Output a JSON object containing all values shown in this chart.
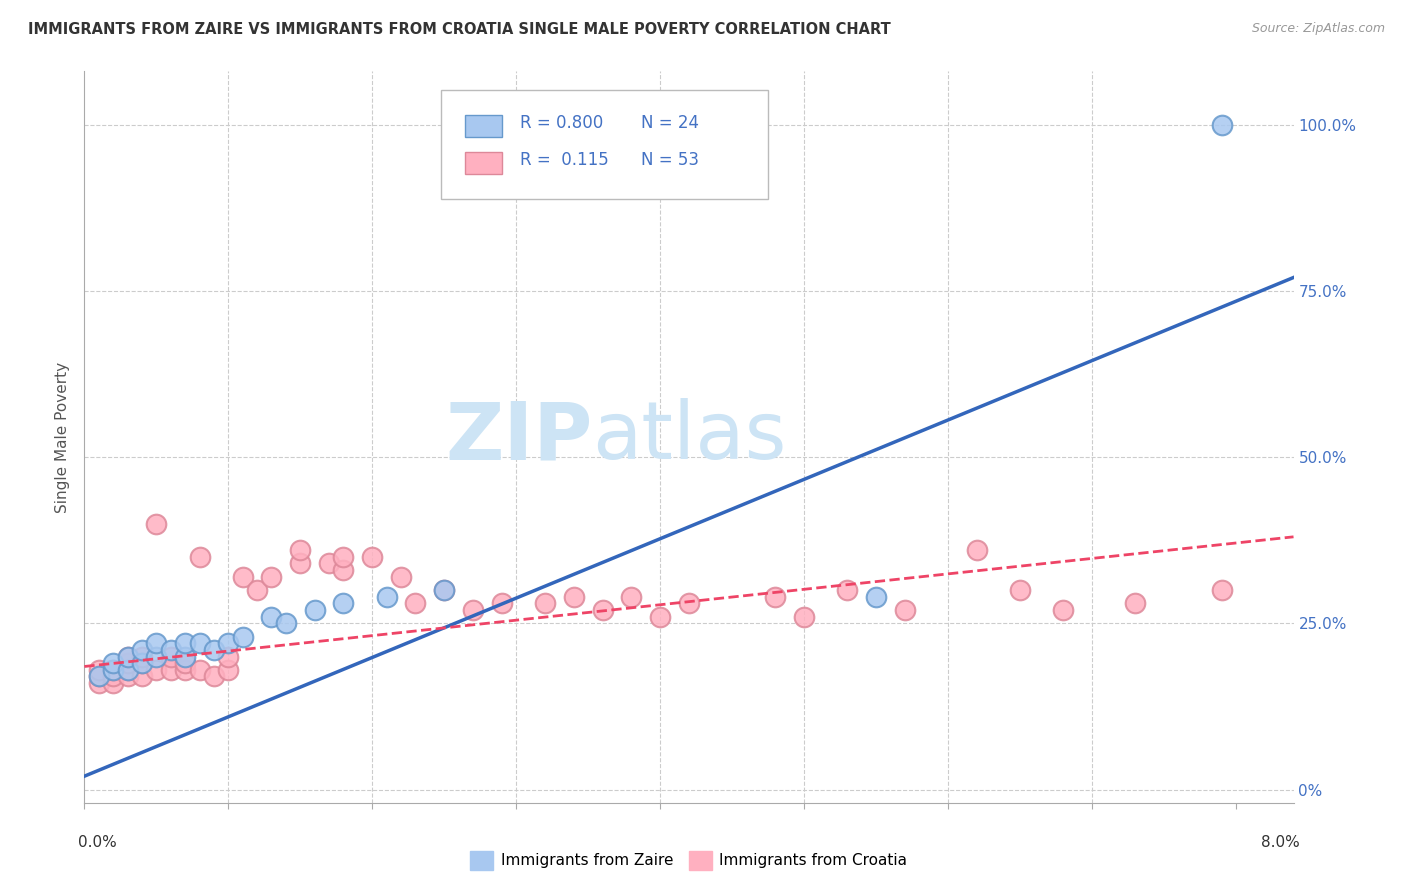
{
  "title": "IMMIGRANTS FROM ZAIRE VS IMMIGRANTS FROM CROATIA SINGLE MALE POVERTY CORRELATION CHART",
  "source": "Source: ZipAtlas.com",
  "ylabel": "Single Male Poverty",
  "yticks_labels": [
    "0%",
    "25.0%",
    "50.0%",
    "75.0%",
    "100.0%"
  ],
  "ytick_vals": [
    0.0,
    0.25,
    0.5,
    0.75,
    1.0
  ],
  "xlim": [
    0.0,
    0.084
  ],
  "ylim": [
    -0.02,
    1.08
  ],
  "zaire_color": "#a8c8f0",
  "zaire_edge_color": "#6699cc",
  "croatia_color": "#ffb0c0",
  "croatia_edge_color": "#dd8899",
  "zaire_line_color": "#3366bb",
  "croatia_line_color": "#ee4466",
  "watermark_color": "#cde4f5",
  "bg_color": "#ffffff",
  "grid_color": "#cccccc",
  "tick_label_color": "#4472c4",
  "zaire_x": [
    0.001,
    0.002,
    0.002,
    0.003,
    0.003,
    0.004,
    0.004,
    0.005,
    0.005,
    0.006,
    0.007,
    0.007,
    0.008,
    0.009,
    0.01,
    0.011,
    0.013,
    0.014,
    0.016,
    0.018,
    0.021,
    0.025,
    0.055,
    0.079
  ],
  "zaire_y": [
    0.17,
    0.18,
    0.19,
    0.18,
    0.2,
    0.19,
    0.21,
    0.2,
    0.22,
    0.21,
    0.2,
    0.22,
    0.22,
    0.21,
    0.22,
    0.23,
    0.26,
    0.25,
    0.27,
    0.28,
    0.29,
    0.3,
    0.29,
    1.0
  ],
  "croatia_x": [
    0.001,
    0.001,
    0.001,
    0.002,
    0.002,
    0.002,
    0.003,
    0.003,
    0.003,
    0.003,
    0.004,
    0.004,
    0.004,
    0.005,
    0.005,
    0.006,
    0.006,
    0.007,
    0.007,
    0.008,
    0.008,
    0.009,
    0.01,
    0.01,
    0.011,
    0.012,
    0.013,
    0.015,
    0.015,
    0.017,
    0.018,
    0.018,
    0.02,
    0.022,
    0.023,
    0.025,
    0.027,
    0.029,
    0.032,
    0.034,
    0.036,
    0.038,
    0.04,
    0.042,
    0.048,
    0.05,
    0.053,
    0.057,
    0.062,
    0.065,
    0.068,
    0.073,
    0.079
  ],
  "croatia_y": [
    0.16,
    0.17,
    0.18,
    0.16,
    0.17,
    0.18,
    0.17,
    0.18,
    0.19,
    0.2,
    0.17,
    0.19,
    0.2,
    0.18,
    0.4,
    0.18,
    0.2,
    0.18,
    0.19,
    0.18,
    0.35,
    0.17,
    0.18,
    0.2,
    0.32,
    0.3,
    0.32,
    0.34,
    0.36,
    0.34,
    0.33,
    0.35,
    0.35,
    0.32,
    0.28,
    0.3,
    0.27,
    0.28,
    0.28,
    0.29,
    0.27,
    0.29,
    0.26,
    0.28,
    0.29,
    0.26,
    0.3,
    0.27,
    0.36,
    0.3,
    0.27,
    0.28,
    0.3
  ],
  "zaire_line_x0": 0.0,
  "zaire_line_y0": 0.02,
  "zaire_line_x1": 0.084,
  "zaire_line_y1": 0.77,
  "croatia_line_x0": 0.0,
  "croatia_line_y0": 0.185,
  "croatia_line_x1": 0.084,
  "croatia_line_y1": 0.38
}
